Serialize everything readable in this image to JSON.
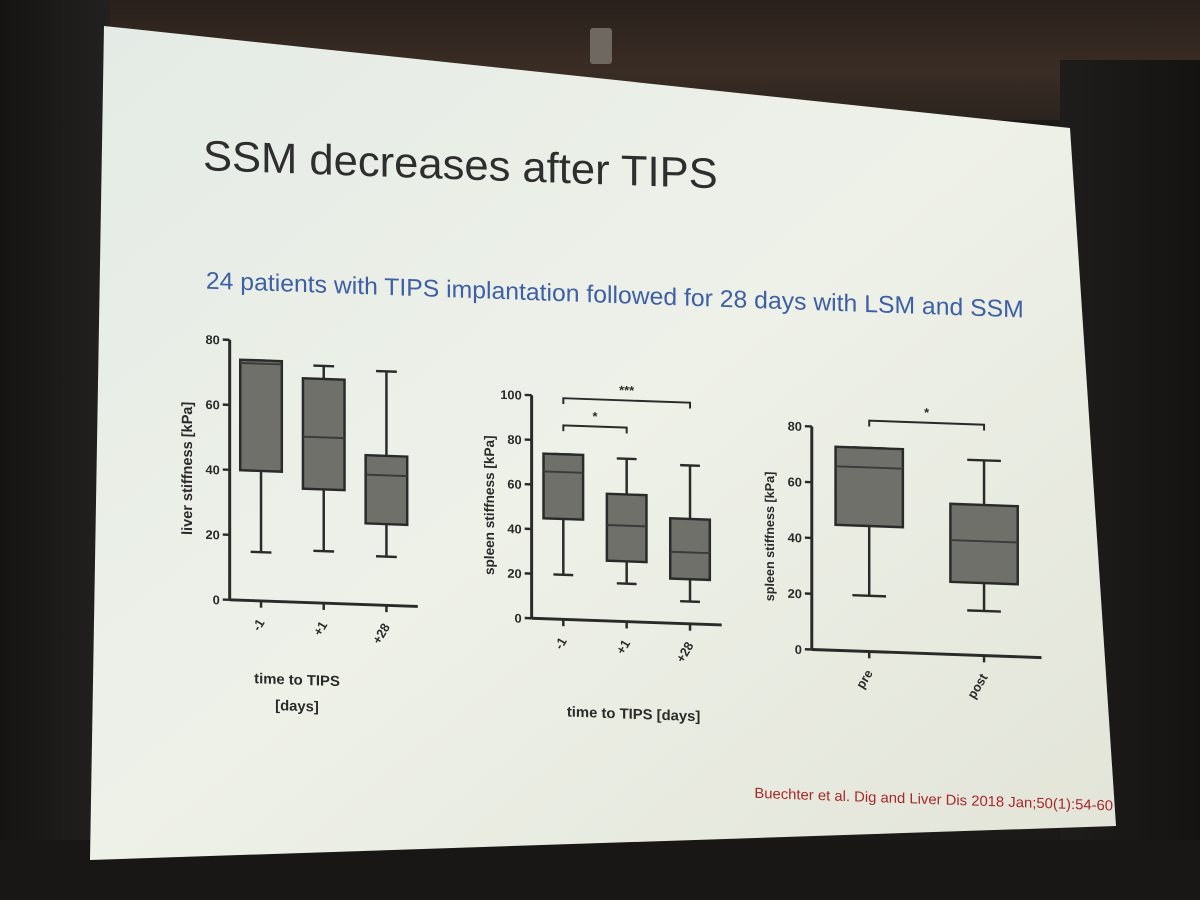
{
  "slide": {
    "title": "SSM decreases after TIPS",
    "subtitle": "24 patients with TIPS implantation followed for 28 days with LSM and SSM",
    "citation": "Buechter et al.  Dig and Liver Dis 2018 Jan;50(1):54-60"
  },
  "chart_data": [
    {
      "type": "box",
      "ylabel": "liver stiffness [kPa]",
      "xlabel_lines": [
        "time to TIPS",
        "[days]"
      ],
      "ylim": [
        0,
        80
      ],
      "yticks": [
        0,
        20,
        40,
        60,
        80
      ],
      "categories": [
        "-1",
        "+1",
        "+28"
      ],
      "boxes": [
        {
          "min": 15,
          "q1": 40,
          "median": 73,
          "q3": 74,
          "max": 74
        },
        {
          "min": 16,
          "q1": 35,
          "median": 51,
          "q3": 69,
          "max": 73
        },
        {
          "min": 15,
          "q1": 25,
          "median": 40,
          "q3": 46,
          "max": 72
        }
      ],
      "significance": []
    },
    {
      "type": "box",
      "ylabel": "spleen stiffness [kPa]",
      "xlabel_lines": [
        "time to TIPS [days]"
      ],
      "ylim": [
        0,
        100
      ],
      "yticks": [
        0,
        20,
        40,
        60,
        80,
        100
      ],
      "categories": [
        "-1",
        "+1",
        "+28"
      ],
      "boxes": [
        {
          "min": 20,
          "q1": 45,
          "median": 66,
          "q3": 74,
          "max": 74
        },
        {
          "min": 17,
          "q1": 27,
          "median": 43,
          "q3": 57,
          "max": 73
        },
        {
          "min": 10,
          "q1": 20,
          "median": 32,
          "q3": 47,
          "max": 71
        }
      ],
      "significance": [
        {
          "from": 0,
          "to": 1,
          "label": "*"
        },
        {
          "from": 0,
          "to": 2,
          "label": "***"
        }
      ]
    },
    {
      "type": "box",
      "ylabel": "spleen stiffness [kPa]",
      "xlabel_lines": [],
      "ylim": [
        0,
        80
      ],
      "yticks": [
        0,
        20,
        40,
        60,
        80
      ],
      "categories": [
        "pre",
        "post"
      ],
      "boxes": [
        {
          "min": 20,
          "q1": 45,
          "median": 66,
          "q3": 73,
          "max": 73
        },
        {
          "min": 16,
          "q1": 26,
          "median": 41,
          "q3": 54,
          "max": 70
        }
      ],
      "significance": [
        {
          "from": 0,
          "to": 1,
          "label": "*"
        }
      ]
    }
  ],
  "colors": {
    "slide_bg": "#e9eee4",
    "box_fill": "#6e7069",
    "line": "#2a2a2a",
    "title": "#2e2e2e",
    "subtitle": "#3d5fa3",
    "citation": "#a6282a"
  }
}
